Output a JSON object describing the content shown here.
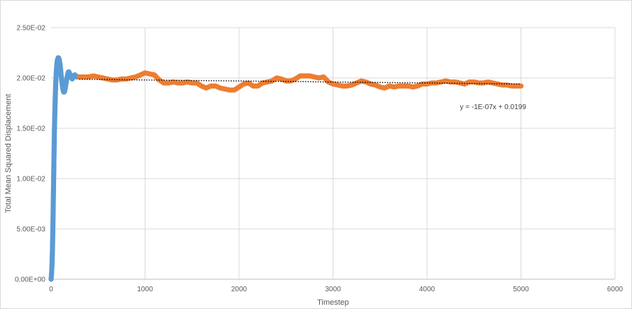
{
  "chart_data": {
    "type": "scatter",
    "xlabel": "Timestep",
    "ylabel": "Total Mean Squared Displacement",
    "xlim": [
      0,
      6000
    ],
    "ylim": [
      0,
      0.025
    ],
    "x_ticks": [
      0,
      1000,
      2000,
      3000,
      4000,
      5000,
      6000
    ],
    "x_tick_labels": [
      "0",
      "1000",
      "2000",
      "3000",
      "4000",
      "5000",
      "6000"
    ],
    "y_ticks": [
      0,
      0.005,
      0.01,
      0.015,
      0.02,
      0.025
    ],
    "y_tick_labels": [
      "0.00E+00",
      "5.00E-03",
      "1.00E-02",
      "1.50E-02",
      "2.00E-02",
      "2.50E-02"
    ],
    "grid": true,
    "legend": "none",
    "series": [
      {
        "color": "#5b9bd5",
        "points": [
          [
            0,
            0.0
          ],
          [
            5,
            0.0005
          ],
          [
            10,
            0.0015
          ],
          [
            15,
            0.003
          ],
          [
            20,
            0.0055
          ],
          [
            25,
            0.0085
          ],
          [
            30,
            0.0115
          ],
          [
            35,
            0.0145
          ],
          [
            40,
            0.0165
          ],
          [
            45,
            0.0182
          ],
          [
            50,
            0.0195
          ],
          [
            55,
            0.0205
          ],
          [
            60,
            0.0212
          ],
          [
            65,
            0.0217
          ],
          [
            70,
            0.0219
          ],
          [
            75,
            0.022
          ],
          [
            80,
            0.022
          ],
          [
            85,
            0.0219
          ],
          [
            90,
            0.0217
          ],
          [
            95,
            0.0214
          ],
          [
            100,
            0.021
          ],
          [
            105,
            0.0205
          ],
          [
            110,
            0.02
          ],
          [
            115,
            0.0196
          ],
          [
            120,
            0.0192
          ],
          [
            125,
            0.0189
          ],
          [
            130,
            0.0187
          ],
          [
            135,
            0.0186
          ],
          [
            140,
            0.0186
          ],
          [
            145,
            0.0187
          ],
          [
            150,
            0.0189
          ],
          [
            155,
            0.0192
          ],
          [
            160,
            0.0195
          ],
          [
            165,
            0.0198
          ],
          [
            170,
            0.0201
          ],
          [
            175,
            0.0203
          ],
          [
            180,
            0.0205
          ],
          [
            185,
            0.0206
          ],
          [
            190,
            0.0206
          ],
          [
            195,
            0.0205
          ],
          [
            200,
            0.0204
          ],
          [
            205,
            0.0202
          ],
          [
            210,
            0.0201
          ],
          [
            215,
            0.02
          ],
          [
            220,
            0.02
          ],
          [
            225,
            0.0199
          ],
          [
            230,
            0.02
          ],
          [
            235,
            0.0201
          ],
          [
            240,
            0.0202
          ],
          [
            245,
            0.0202
          ],
          [
            250,
            0.0203
          ],
          [
            255,
            0.0203
          ],
          [
            260,
            0.0202
          ],
          [
            265,
            0.0202
          ],
          [
            270,
            0.0201
          ],
          [
            275,
            0.0201
          ],
          [
            280,
            0.0201
          ],
          [
            285,
            0.0201
          ],
          [
            290,
            0.0201
          ],
          [
            295,
            0.0201
          ]
        ]
      },
      {
        "color": "#ed7d31",
        "points": [
          [
            300,
            0.0201
          ],
          [
            400,
            0.0201
          ],
          [
            450,
            0.0202
          ],
          [
            500,
            0.0201
          ],
          [
            550,
            0.02
          ],
          [
            600,
            0.0199
          ],
          [
            650,
            0.0198
          ],
          [
            700,
            0.0198
          ],
          [
            750,
            0.0199
          ],
          [
            800,
            0.0199
          ],
          [
            850,
            0.02
          ],
          [
            900,
            0.0201
          ],
          [
            950,
            0.0203
          ],
          [
            1000,
            0.0205
          ],
          [
            1050,
            0.0204
          ],
          [
            1100,
            0.0203
          ],
          [
            1150,
            0.0198
          ],
          [
            1200,
            0.0195
          ],
          [
            1250,
            0.0195
          ],
          [
            1300,
            0.0196
          ],
          [
            1350,
            0.0195
          ],
          [
            1400,
            0.0195
          ],
          [
            1450,
            0.0196
          ],
          [
            1500,
            0.0195
          ],
          [
            1550,
            0.0195
          ],
          [
            1600,
            0.0192
          ],
          [
            1650,
            0.019
          ],
          [
            1700,
            0.0192
          ],
          [
            1750,
            0.0192
          ],
          [
            1800,
            0.019
          ],
          [
            1850,
            0.0189
          ],
          [
            1900,
            0.0188
          ],
          [
            1950,
            0.0188
          ],
          [
            2000,
            0.0191
          ],
          [
            2050,
            0.0194
          ],
          [
            2100,
            0.0195
          ],
          [
            2150,
            0.0192
          ],
          [
            2200,
            0.0192
          ],
          [
            2250,
            0.0195
          ],
          [
            2300,
            0.0196
          ],
          [
            2350,
            0.0197
          ],
          [
            2400,
            0.02
          ],
          [
            2450,
            0.0199
          ],
          [
            2500,
            0.0197
          ],
          [
            2550,
            0.0197
          ],
          [
            2600,
            0.0199
          ],
          [
            2650,
            0.0202
          ],
          [
            2700,
            0.0202
          ],
          [
            2750,
            0.0202
          ],
          [
            2800,
            0.0201
          ],
          [
            2850,
            0.02
          ],
          [
            2900,
            0.0201
          ],
          [
            2950,
            0.0196
          ],
          [
            3000,
            0.0194
          ],
          [
            3050,
            0.0193
          ],
          [
            3100,
            0.0192
          ],
          [
            3150,
            0.0192
          ],
          [
            3200,
            0.0193
          ],
          [
            3250,
            0.0195
          ],
          [
            3300,
            0.0197
          ],
          [
            3350,
            0.0196
          ],
          [
            3400,
            0.0194
          ],
          [
            3450,
            0.0193
          ],
          [
            3500,
            0.0191
          ],
          [
            3550,
            0.019
          ],
          [
            3600,
            0.0192
          ],
          [
            3650,
            0.0191
          ],
          [
            3700,
            0.0192
          ],
          [
            3750,
            0.0192
          ],
          [
            3800,
            0.0192
          ],
          [
            3850,
            0.0191
          ],
          [
            3900,
            0.0192
          ],
          [
            3950,
            0.0194
          ],
          [
            4000,
            0.0194
          ],
          [
            4050,
            0.0195
          ],
          [
            4100,
            0.0195
          ],
          [
            4150,
            0.0196
          ],
          [
            4200,
            0.0197
          ],
          [
            4250,
            0.0196
          ],
          [
            4300,
            0.0196
          ],
          [
            4350,
            0.0195
          ],
          [
            4400,
            0.0194
          ],
          [
            4450,
            0.0196
          ],
          [
            4500,
            0.0196
          ],
          [
            4550,
            0.0195
          ],
          [
            4600,
            0.0195
          ],
          [
            4650,
            0.0196
          ],
          [
            4700,
            0.0195
          ],
          [
            4750,
            0.0194
          ],
          [
            4800,
            0.0193
          ],
          [
            4850,
            0.0193
          ],
          [
            4900,
            0.0192
          ],
          [
            4950,
            0.0192
          ],
          [
            5000,
            0.0192
          ]
        ]
      }
    ],
    "trendline": {
      "x_range": [
        300,
        5000
      ],
      "slope": -1e-07,
      "intercept": 0.0199,
      "color": "#000000",
      "label": "y = -1E-07x + 0.0199",
      "label_at": [
        4350,
        0.0169
      ]
    }
  }
}
